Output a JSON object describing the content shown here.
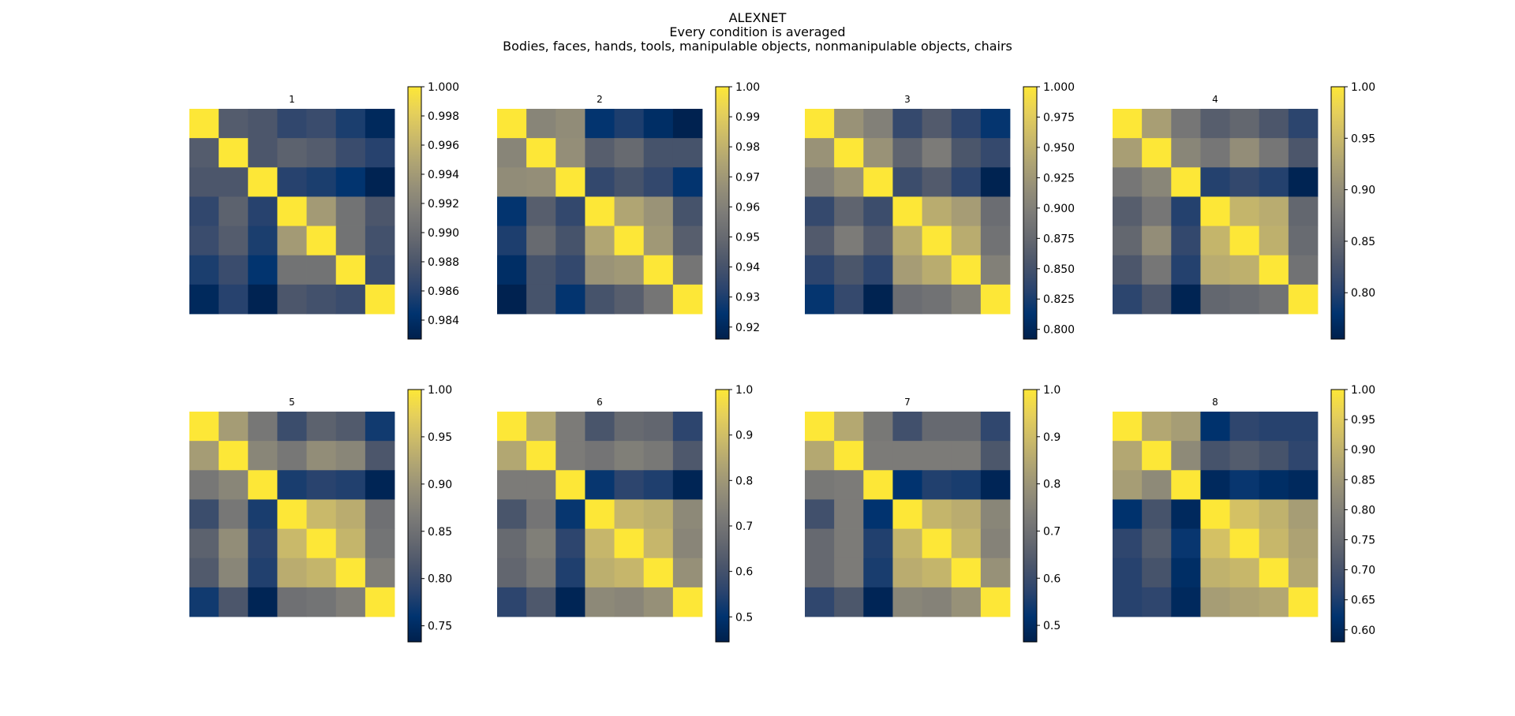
{
  "figure": {
    "title": "ALEXNET",
    "subtitle": "Every condition is averaged",
    "subtitle2": "Bodies, faces, hands, tools, manipulable objects, nonmanipulable objects, chairs"
  },
  "colormap": {
    "name": "cividis",
    "stops": [
      "#00204c",
      "#00336f",
      "#2b446e",
      "#4a556b",
      "#666970",
      "#7d7c78",
      "#958f78",
      "#afa473",
      "#cbba69",
      "#e6d05a",
      "#fde737"
    ]
  },
  "chart_data": [
    {
      "type": "heatmap",
      "title": "1",
      "vmin": 0.9827,
      "vmax": 1.0,
      "colorbar_ticks": [
        "0.984",
        "0.986",
        "0.988",
        "0.990",
        "0.992",
        "0.994",
        "0.996",
        "0.998",
        "1.000"
      ],
      "matrix": [
        [
          1.0,
          0.9885,
          0.988,
          0.9865,
          0.987,
          0.9855,
          0.9835
        ],
        [
          0.9885,
          1.0,
          0.988,
          0.989,
          0.9885,
          0.987,
          0.986
        ],
        [
          0.988,
          0.988,
          1.0,
          0.986,
          0.9855,
          0.9845,
          0.983
        ],
        [
          0.9865,
          0.989,
          0.986,
          1.0,
          0.994,
          0.9905,
          0.988
        ],
        [
          0.987,
          0.9885,
          0.9855,
          0.994,
          1.0,
          0.9905,
          0.9875
        ],
        [
          0.9855,
          0.987,
          0.9845,
          0.9905,
          0.9905,
          1.0,
          0.987
        ],
        [
          0.9835,
          0.986,
          0.983,
          0.988,
          0.9875,
          0.987,
          1.0
        ]
      ]
    },
    {
      "type": "heatmap",
      "title": "2",
      "vmin": 0.916,
      "vmax": 1.0,
      "colorbar_ticks": [
        "0.92",
        "0.93",
        "0.94",
        "0.95",
        "0.96",
        "0.97",
        "0.98",
        "0.99",
        "1.00"
      ],
      "matrix": [
        [
          1.0,
          0.962,
          0.965,
          0.925,
          0.93,
          0.922,
          0.917
        ],
        [
          0.962,
          1.0,
          0.966,
          0.945,
          0.95,
          0.94,
          0.94
        ],
        [
          0.965,
          0.966,
          1.0,
          0.935,
          0.94,
          0.935,
          0.925
        ],
        [
          0.925,
          0.945,
          0.935,
          1.0,
          0.975,
          0.968,
          0.94
        ],
        [
          0.93,
          0.95,
          0.94,
          0.975,
          1.0,
          0.97,
          0.945
        ],
        [
          0.922,
          0.94,
          0.935,
          0.968,
          0.97,
          1.0,
          0.955
        ],
        [
          0.917,
          0.94,
          0.925,
          0.94,
          0.945,
          0.955,
          1.0
        ]
      ]
    },
    {
      "type": "heatmap",
      "title": "3",
      "vmin": 0.792,
      "vmax": 1.0,
      "colorbar_ticks": [
        "0.800",
        "0.825",
        "0.850",
        "0.875",
        "0.900",
        "0.925",
        "0.950",
        "0.975",
        "1.000"
      ],
      "matrix": [
        [
          1.0,
          0.92,
          0.9,
          0.84,
          0.86,
          0.835,
          0.815
        ],
        [
          0.92,
          1.0,
          0.92,
          0.87,
          0.895,
          0.855,
          0.84
        ],
        [
          0.9,
          0.92,
          1.0,
          0.845,
          0.86,
          0.835,
          0.795
        ],
        [
          0.84,
          0.87,
          0.845,
          1.0,
          0.945,
          0.93,
          0.88
        ],
        [
          0.86,
          0.895,
          0.86,
          0.945,
          1.0,
          0.945,
          0.885
        ],
        [
          0.835,
          0.855,
          0.835,
          0.93,
          0.945,
          1.0,
          0.9
        ],
        [
          0.815,
          0.84,
          0.795,
          0.88,
          0.885,
          0.9,
          1.0
        ]
      ]
    },
    {
      "type": "heatmap",
      "title": "4",
      "vmin": 0.755,
      "vmax": 1.0,
      "colorbar_ticks": [
        "0.80",
        "0.85",
        "0.90",
        "0.95",
        "1.00"
      ],
      "matrix": [
        [
          1.0,
          0.92,
          0.87,
          0.84,
          0.85,
          0.83,
          0.805
        ],
        [
          0.92,
          1.0,
          0.89,
          0.87,
          0.9,
          0.87,
          0.83
        ],
        [
          0.87,
          0.89,
          1.0,
          0.8,
          0.81,
          0.8,
          0.76
        ],
        [
          0.84,
          0.87,
          0.8,
          1.0,
          0.945,
          0.935,
          0.85
        ],
        [
          0.85,
          0.9,
          0.81,
          0.945,
          1.0,
          0.94,
          0.855
        ],
        [
          0.83,
          0.87,
          0.8,
          0.935,
          0.94,
          1.0,
          0.865
        ],
        [
          0.805,
          0.83,
          0.76,
          0.85,
          0.855,
          0.865,
          1.0
        ]
      ]
    },
    {
      "type": "heatmap",
      "title": "5",
      "vmin": 0.733,
      "vmax": 1.0,
      "colorbar_ticks": [
        "0.75",
        "0.80",
        "0.85",
        "0.90",
        "0.95",
        "1.00"
      ],
      "matrix": [
        [
          1.0,
          0.91,
          0.86,
          0.8,
          0.83,
          0.82,
          0.77
        ],
        [
          0.91,
          1.0,
          0.88,
          0.86,
          0.89,
          0.88,
          0.815
        ],
        [
          0.86,
          0.88,
          1.0,
          0.775,
          0.785,
          0.78,
          0.74
        ],
        [
          0.8,
          0.86,
          0.775,
          1.0,
          0.945,
          0.93,
          0.85
        ],
        [
          0.83,
          0.89,
          0.785,
          0.945,
          1.0,
          0.94,
          0.855
        ],
        [
          0.82,
          0.88,
          0.78,
          0.93,
          0.94,
          1.0,
          0.87
        ],
        [
          0.77,
          0.815,
          0.74,
          0.85,
          0.855,
          0.87,
          1.0
        ]
      ]
    },
    {
      "type": "heatmap",
      "title": "6",
      "vmin": 0.445,
      "vmax": 1.0,
      "colorbar_ticks": [
        "0.5",
        "0.6",
        "0.7",
        "0.8",
        "0.9",
        "1.0"
      ],
      "matrix": [
        [
          1.0,
          0.84,
          0.72,
          0.61,
          0.67,
          0.66,
          0.56
        ],
        [
          0.84,
          1.0,
          0.72,
          0.7,
          0.73,
          0.71,
          0.62
        ],
        [
          0.72,
          0.72,
          1.0,
          0.51,
          0.56,
          0.54,
          0.46
        ],
        [
          0.61,
          0.7,
          0.51,
          1.0,
          0.88,
          0.86,
          0.76
        ],
        [
          0.67,
          0.73,
          0.56,
          0.88,
          1.0,
          0.88,
          0.75
        ],
        [
          0.66,
          0.71,
          0.54,
          0.86,
          0.88,
          1.0,
          0.78
        ],
        [
          0.56,
          0.62,
          0.46,
          0.76,
          0.75,
          0.78,
          1.0
        ]
      ]
    },
    {
      "type": "heatmap",
      "title": "7",
      "vmin": 0.465,
      "vmax": 1.0,
      "colorbar_ticks": [
        "0.5",
        "0.6",
        "0.7",
        "0.8",
        "0.9",
        "1.0"
      ],
      "matrix": [
        [
          1.0,
          0.85,
          0.72,
          0.61,
          0.68,
          0.68,
          0.58
        ],
        [
          0.85,
          1.0,
          0.73,
          0.73,
          0.73,
          0.73,
          0.63
        ],
        [
          0.72,
          0.73,
          1.0,
          0.52,
          0.56,
          0.55,
          0.48
        ],
        [
          0.61,
          0.73,
          0.52,
          1.0,
          0.88,
          0.86,
          0.76
        ],
        [
          0.68,
          0.73,
          0.56,
          0.88,
          1.0,
          0.88,
          0.75
        ],
        [
          0.68,
          0.73,
          0.55,
          0.86,
          0.88,
          1.0,
          0.79
        ],
        [
          0.58,
          0.63,
          0.48,
          0.76,
          0.75,
          0.79,
          1.0
        ]
      ]
    },
    {
      "type": "heatmap",
      "title": "8",
      "vmin": 0.58,
      "vmax": 1.0,
      "colorbar_ticks": [
        "0.60",
        "0.65",
        "0.70",
        "0.75",
        "0.80",
        "0.85",
        "0.90",
        "0.95",
        "1.00"
      ],
      "matrix": [
        [
          1.0,
          0.88,
          0.86,
          0.62,
          0.67,
          0.66,
          0.66
        ],
        [
          0.88,
          1.0,
          0.82,
          0.7,
          0.72,
          0.7,
          0.67
        ],
        [
          0.86,
          0.82,
          1.0,
          0.6,
          0.63,
          0.61,
          0.6
        ],
        [
          0.62,
          0.7,
          0.6,
          1.0,
          0.93,
          0.9,
          0.86
        ],
        [
          0.67,
          0.72,
          0.63,
          0.93,
          1.0,
          0.91,
          0.87
        ],
        [
          0.66,
          0.7,
          0.61,
          0.9,
          0.91,
          1.0,
          0.88
        ],
        [
          0.66,
          0.67,
          0.6,
          0.86,
          0.87,
          0.88,
          1.0
        ]
      ]
    }
  ]
}
